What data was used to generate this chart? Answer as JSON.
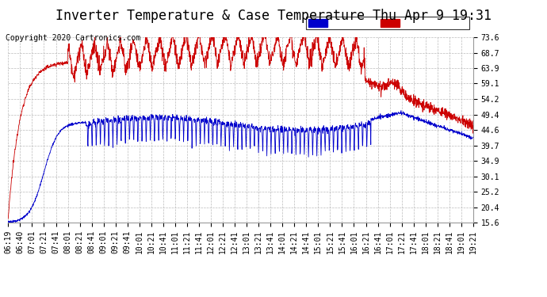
{
  "title": "Inverter Temperature & Case Temperature Thu Apr 9 19:31",
  "copyright": "Copyright 2020 Cartronics.com",
  "ylabel_right_ticks": [
    15.6,
    20.4,
    25.2,
    30.1,
    34.9,
    39.7,
    44.6,
    49.4,
    54.2,
    59.1,
    63.9,
    68.7,
    73.6
  ],
  "ylim": [
    15.6,
    73.6
  ],
  "x_labels": [
    "06:19",
    "06:40",
    "07:01",
    "07:21",
    "07:41",
    "08:01",
    "08:21",
    "08:41",
    "09:01",
    "09:21",
    "09:41",
    "10:01",
    "10:21",
    "10:41",
    "11:01",
    "11:21",
    "11:41",
    "12:01",
    "12:21",
    "12:41",
    "13:01",
    "13:21",
    "13:41",
    "14:01",
    "14:21",
    "14:41",
    "15:01",
    "15:21",
    "15:41",
    "16:01",
    "16:21",
    "16:41",
    "17:01",
    "17:21",
    "17:41",
    "18:01",
    "18:21",
    "18:41",
    "19:01",
    "19:21"
  ],
  "line_case_color": "#0000cc",
  "line_inverter_color": "#cc0000",
  "background_color": "#ffffff",
  "grid_color": "#bbbbbb",
  "title_fontsize": 12,
  "copyright_fontsize": 7,
  "tick_fontsize": 7
}
